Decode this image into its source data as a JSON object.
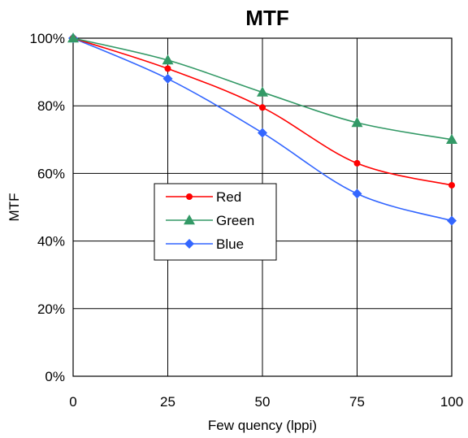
{
  "chart_data": {
    "type": "line",
    "title": "MTF",
    "xlabel": "Few quency (lppi)",
    "ylabel": "MTF",
    "x_ticks": [
      "0",
      "25",
      "50",
      "75",
      "100"
    ],
    "y_ticks": [
      "0%",
      "20%",
      "40%",
      "60%",
      "80%",
      "100%"
    ],
    "xlim": [
      0,
      100
    ],
    "ylim": [
      0,
      100
    ],
    "grid": "horizontal and vertical major gridlines",
    "legend_position": "center-left",
    "series": [
      {
        "name": "Red",
        "color": "#ff0000",
        "marker": "circle",
        "x": [
          0,
          25,
          50,
          75,
          100
        ],
        "y": [
          100,
          91,
          79.5,
          63,
          56.5
        ]
      },
      {
        "name": "Green",
        "color": "#339966",
        "marker": "triangle",
        "x": [
          0,
          25,
          50,
          75,
          100
        ],
        "y": [
          100,
          93.5,
          84,
          75,
          70
        ]
      },
      {
        "name": "Blue",
        "color": "#3366ff",
        "marker": "diamond",
        "x": [
          0,
          25,
          50,
          75,
          100
        ],
        "y": [
          100,
          88,
          72,
          54,
          46
        ]
      }
    ]
  }
}
